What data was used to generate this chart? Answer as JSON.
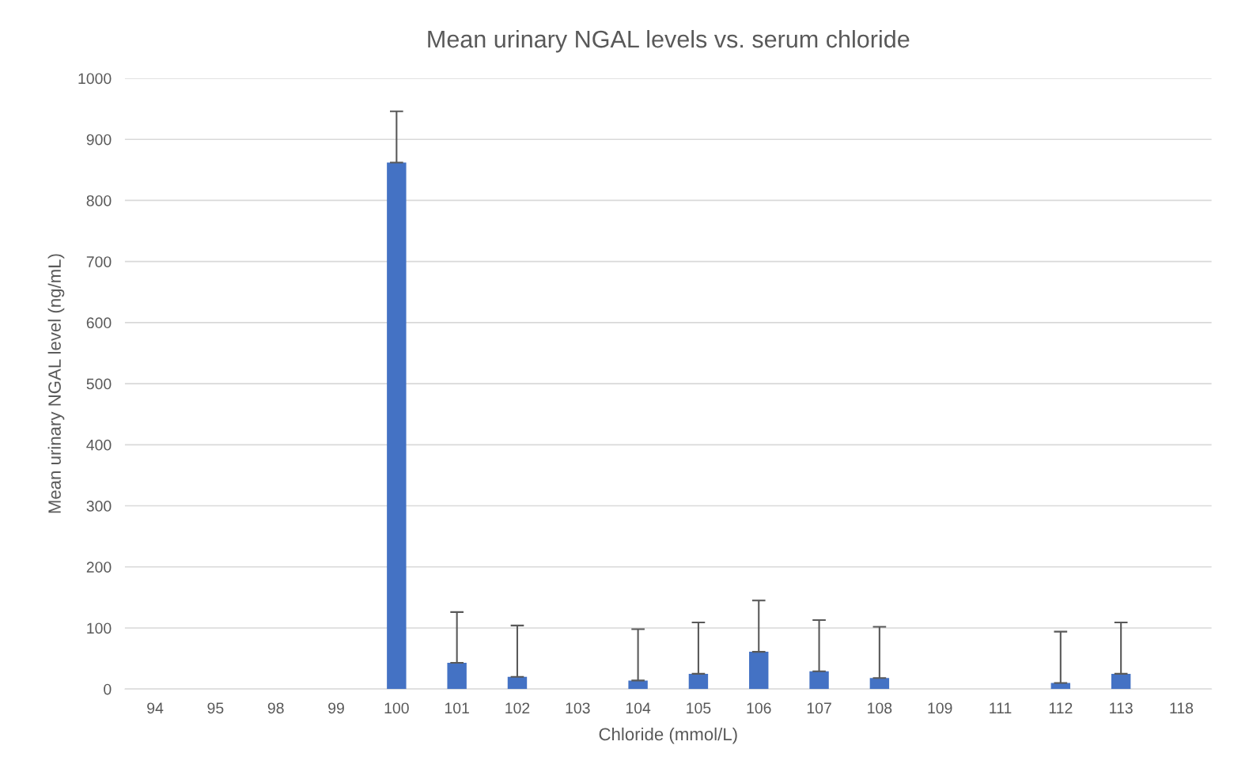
{
  "chart_data": {
    "type": "bar",
    "title": "Mean urinary NGAL levels vs. serum chloride",
    "xlabel": "Chloride (mmol/L)",
    "ylabel": "Mean urinary NGAL level (ng/mL)",
    "categories": [
      "94",
      "95",
      "98",
      "99",
      "100",
      "101",
      "102",
      "103",
      "104",
      "105",
      "106",
      "107",
      "108",
      "109",
      "111",
      "112",
      "113",
      "118"
    ],
    "values": [
      null,
      null,
      null,
      null,
      862,
      43,
      20,
      null,
      14,
      25,
      61,
      29,
      18,
      null,
      null,
      10,
      25,
      null
    ],
    "errors": [
      null,
      null,
      null,
      null,
      [
        862,
        946
      ],
      [
        43,
        126
      ],
      [
        20,
        104
      ],
      null,
      [
        14,
        98
      ],
      [
        25,
        109
      ],
      [
        61,
        145
      ],
      [
        29,
        113
      ],
      [
        18,
        102
      ],
      null,
      null,
      [
        10,
        94
      ],
      [
        25,
        109
      ],
      null
    ],
    "color": "#4472c4",
    "ylim": [
      0,
      1000
    ],
    "yticks": [
      0,
      100,
      200,
      300,
      400,
      500,
      600,
      700,
      800,
      900,
      1000
    ],
    "grid": "y",
    "legend": false
  }
}
